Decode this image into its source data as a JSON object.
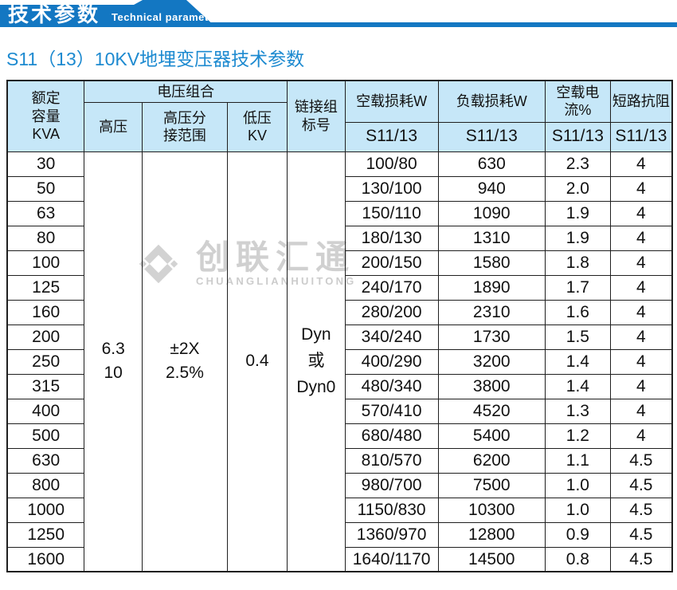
{
  "banner": {
    "title": "技术参数",
    "subtitle": "Technical parameter"
  },
  "page_title": "S11（13）10KV地埋变压器技术参数",
  "watermark": {
    "name": "创联汇通",
    "latin": "CHUANGLIANHUITONG"
  },
  "colors": {
    "banner_blue": "#1377c2",
    "header_bg": "#c6e7f8",
    "title_blue": "#1d8ad0",
    "border_dark": "#1f1f1f",
    "watermark_gray": "#d2d2d2"
  },
  "table": {
    "headers": {
      "capacity": "额定\n容量\nKVA",
      "voltage_group": "电压组合",
      "hv": "高压",
      "hv_tap": "高压分\n接范围",
      "lv": "低压\nKV",
      "vector": "链接组\n标号",
      "noload_loss": "空载损耗W",
      "load_loss": "负载损耗W",
      "noload_current": "空载电流%",
      "impedance": "短路抗阻"
    },
    "model_row": [
      "S11/13",
      "S11/13",
      "S11/13",
      "S11/13"
    ],
    "merged": {
      "hv": "6.3\n10",
      "hv_tap": "±2X\n2.5%",
      "lv": "0.4",
      "vector": "Dyn\n或\nDyn0"
    },
    "rows": [
      {
        "kva": "30",
        "noload": "100/80",
        "load": "630",
        "current": "2.3",
        "impedance": "4"
      },
      {
        "kva": "50",
        "noload": "130/100",
        "load": "940",
        "current": "2.0",
        "impedance": "4"
      },
      {
        "kva": "63",
        "noload": "150/110",
        "load": "1090",
        "current": "1.9",
        "impedance": "4"
      },
      {
        "kva": "80",
        "noload": "180/130",
        "load": "1310",
        "current": "1.9",
        "impedance": "4"
      },
      {
        "kva": "100",
        "noload": "200/150",
        "load": "1580",
        "current": "1.8",
        "impedance": "4"
      },
      {
        "kva": "125",
        "noload": "240/170",
        "load": "1890",
        "current": "1.7",
        "impedance": "4"
      },
      {
        "kva": "160",
        "noload": "280/200",
        "load": "2310",
        "current": "1.6",
        "impedance": "4"
      },
      {
        "kva": "200",
        "noload": "340/240",
        "load": "1730",
        "current": "1.5",
        "impedance": "4"
      },
      {
        "kva": "250",
        "noload": "400/290",
        "load": "3200",
        "current": "1.4",
        "impedance": "4"
      },
      {
        "kva": "315",
        "noload": "480/340",
        "load": "3800",
        "current": "1.4",
        "impedance": "4"
      },
      {
        "kva": "400",
        "noload": "570/410",
        "load": "4520",
        "current": "1.3",
        "impedance": "4"
      },
      {
        "kva": "500",
        "noload": "680/480",
        "load": "5400",
        "current": "1.2",
        "impedance": "4"
      },
      {
        "kva": "630",
        "noload": "810/570",
        "load": "6200",
        "current": "1.1",
        "impedance": "4.5"
      },
      {
        "kva": "800",
        "noload": "980/700",
        "load": "7500",
        "current": "1.0",
        "impedance": "4.5"
      },
      {
        "kva": "1000",
        "noload": "1150/830",
        "load": "10300",
        "current": "1.0",
        "impedance": "4.5"
      },
      {
        "kva": "1250",
        "noload": "1360/970",
        "load": "12800",
        "current": "0.9",
        "impedance": "4.5"
      },
      {
        "kva": "1600",
        "noload": "1640/1170",
        "load": "14500",
        "current": "0.8",
        "impedance": "4.5"
      }
    ]
  }
}
